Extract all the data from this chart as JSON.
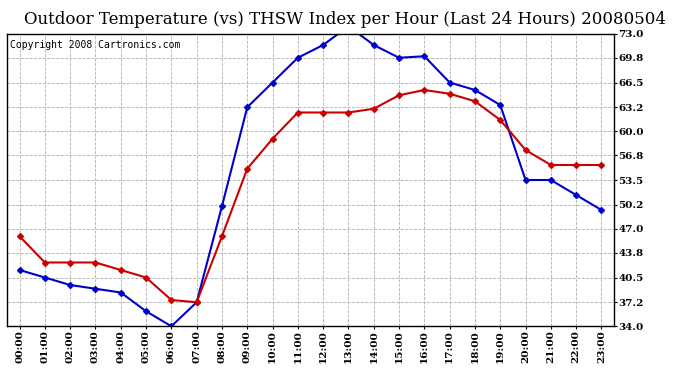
{
  "title": "Outdoor Temperature (vs) THSW Index per Hour (Last 24 Hours) 20080504",
  "copyright": "Copyright 2008 Cartronics.com",
  "hours": [
    "00:00",
    "01:00",
    "02:00",
    "03:00",
    "04:00",
    "05:00",
    "06:00",
    "07:00",
    "08:00",
    "09:00",
    "10:00",
    "11:00",
    "12:00",
    "13:00",
    "14:00",
    "15:00",
    "16:00",
    "17:00",
    "18:00",
    "19:00",
    "20:00",
    "21:00",
    "22:00",
    "23:00"
  ],
  "temp": [
    46.0,
    42.5,
    42.5,
    42.5,
    41.5,
    40.5,
    37.5,
    37.2,
    46.0,
    55.0,
    59.0,
    62.5,
    62.5,
    62.5,
    63.0,
    64.8,
    65.5,
    65.0,
    64.0,
    61.5,
    57.5,
    55.5,
    55.5,
    55.5
  ],
  "thsw": [
    41.5,
    40.5,
    39.5,
    39.0,
    38.5,
    36.0,
    34.0,
    37.2,
    50.0,
    63.2,
    66.5,
    69.8,
    71.5,
    74.0,
    71.5,
    69.8,
    70.0,
    66.5,
    65.5,
    63.5,
    53.5,
    53.5,
    51.5,
    49.5
  ],
  "temp_color": "#cc0000",
  "thsw_color": "#0000cc",
  "bg_color": "#ffffff",
  "grid_color": "#b0b0b0",
  "yticks": [
    34.0,
    37.2,
    40.5,
    43.8,
    47.0,
    50.2,
    53.5,
    56.8,
    60.0,
    63.2,
    66.5,
    69.8,
    73.0
  ],
  "ymin": 34.0,
  "ymax": 73.0,
  "title_fontsize": 12,
  "copyright_fontsize": 7,
  "axis_fontsize": 7.5,
  "marker": "D",
  "marker_size": 3,
  "line_width": 1.5
}
